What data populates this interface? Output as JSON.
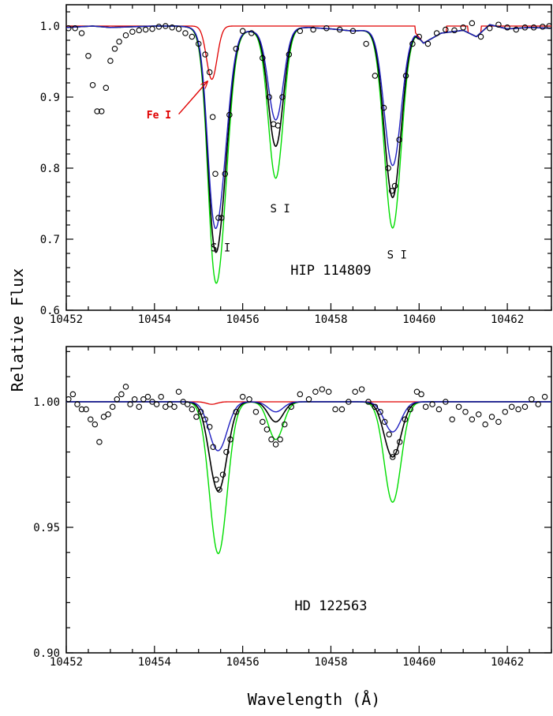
{
  "chart_data": {
    "type": "line",
    "xlabel": "Wavelength (Å)",
    "ylabel": "Relative Flux",
    "colors": {
      "observed": "#000000",
      "fe_only": "#e00000",
      "s_low": "#2020c0",
      "s_best": "#000000",
      "s_high": "#00dd00"
    },
    "panels": [
      {
        "label": "HIP 114809",
        "xlim": [
          10452,
          10463
        ],
        "ylim": [
          0.6,
          1.03
        ],
        "xticks": [
          10452,
          10454,
          10456,
          10458,
          10460,
          10462
        ],
        "xtick_labels": [
          "10452",
          "10454",
          "10456",
          "10458",
          "10460",
          "10462"
        ],
        "yticks": [
          0.6,
          0.7,
          0.8,
          0.9,
          1.0
        ],
        "ytick_labels": [
          "0.6",
          "0.7",
          "0.8",
          "0.9",
          "1.0"
        ],
        "annotations": [
          {
            "text": "S I",
            "x": 10455.5,
            "y": 0.683
          },
          {
            "text": "S I",
            "x": 10456.85,
            "y": 0.738
          },
          {
            "text": "S I",
            "x": 10459.5,
            "y": 0.673
          },
          {
            "text": "Fe I",
            "x": 10454.1,
            "y": 0.87,
            "color": "#e00000"
          }
        ],
        "arrow": {
          "from": [
            10454.55,
            0.876
          ],
          "to": [
            10455.2,
            0.922
          ],
          "color": "#e00000"
        },
        "base": {
          "x": [
            10452.0,
            10452.6,
            10453.0,
            10453.5,
            10454.0,
            10454.5,
            10455.0,
            10455.9,
            10456.2,
            10457.0,
            10457.5,
            10458.0,
            10458.5,
            10459.0,
            10459.9,
            10460.1,
            10460.5,
            10461.0,
            10461.3,
            10461.6,
            10462.0,
            10462.5,
            10463.0
          ],
          "y": [
            0.998,
            1.0,
            0.998,
            0.999,
            1.0,
            1.0,
            0.998,
            0.994,
            0.993,
            0.997,
            0.998,
            0.996,
            0.993,
            0.995,
            0.992,
            0.976,
            0.99,
            0.994,
            0.985,
            1.002,
            0.996,
            0.998,
            0.997
          ]
        },
        "lines": [
          {
            "center": 10455.45,
            "width": 0.2
          },
          {
            "center": 10456.75,
            "width": 0.17
          },
          {
            "center": 10459.4,
            "width": 0.19
          }
        ],
        "fe_line": {
          "center": 10455.3,
          "width": 0.12,
          "depth": 0.075
        },
        "series": [
          {
            "key": "s_high",
            "depths": [
              0.315,
              0.21,
              0.278
            ]
          },
          {
            "key": "s_best",
            "depths": [
              0.27,
              0.165,
              0.235
            ]
          },
          {
            "key": "s_low",
            "depths": [
              0.235,
              0.128,
              0.19
            ]
          }
        ],
        "observed": {
          "x": [
            10452.05,
            10452.2,
            10452.35,
            10452.5,
            10452.6,
            10452.7,
            10452.8,
            10452.9,
            10453.0,
            10453.1,
            10453.2,
            10453.35,
            10453.5,
            10453.65,
            10453.8,
            10453.95,
            10454.1,
            10454.25,
            10454.4,
            10454.55,
            10454.7,
            10454.85,
            10455.0,
            10455.15,
            10455.25,
            10455.32,
            10455.38,
            10455.45,
            10455.52,
            10455.6,
            10455.7,
            10455.85,
            10456.0,
            10456.2,
            10456.45,
            10456.6,
            10456.7,
            10456.8,
            10456.9,
            10457.05,
            10457.3,
            10457.6,
            10457.9,
            10458.2,
            10458.5,
            10458.8,
            10459.0,
            10459.2,
            10459.3,
            10459.38,
            10459.45,
            10459.55,
            10459.7,
            10459.85,
            10460.0,
            10460.2,
            10460.4,
            10460.6,
            10460.8,
            10461.0,
            10461.2,
            10461.4,
            10461.6,
            10461.8,
            10462.0,
            10462.2,
            10462.4,
            10462.6,
            10462.8,
            10462.95
          ],
          "y": [
            0.997,
            0.997,
            0.99,
            0.958,
            0.917,
            0.88,
            0.88,
            0.913,
            0.951,
            0.968,
            0.978,
            0.987,
            0.992,
            0.994,
            0.995,
            0.996,
            0.999,
            1.0,
            0.998,
            0.996,
            0.99,
            0.985,
            0.975,
            0.96,
            0.935,
            0.872,
            0.792,
            0.73,
            0.73,
            0.792,
            0.875,
            0.968,
            0.993,
            0.99,
            0.955,
            0.9,
            0.862,
            0.86,
            0.9,
            0.96,
            0.993,
            0.995,
            0.997,
            0.995,
            0.993,
            0.975,
            0.93,
            0.885,
            0.8,
            0.768,
            0.775,
            0.84,
            0.93,
            0.975,
            0.985,
            0.975,
            0.99,
            0.995,
            0.994,
            0.998,
            1.004,
            0.985,
            0.997,
            1.002,
            0.998,
            0.995,
            0.998,
            0.998,
            0.999,
            1.0
          ]
        }
      },
      {
        "label": "HD 122563",
        "xlim": [
          10452,
          10463
        ],
        "ylim": [
          0.9,
          1.022
        ],
        "xticks": [
          10452,
          10454,
          10456,
          10458,
          10460,
          10462
        ],
        "xtick_labels": [
          "10452",
          "10454",
          "10456",
          "10458",
          "10460",
          "10462"
        ],
        "yticks": [
          0.9,
          0.95,
          1.0
        ],
        "ytick_labels": [
          "0.90",
          "0.95",
          "1.00"
        ],
        "annotations": [],
        "arrow": null,
        "base": {
          "x": [
            10452.0,
            10463.0
          ],
          "y": [
            1.0,
            1.0
          ]
        },
        "lines": [
          {
            "center": 10455.45,
            "width": 0.2
          },
          {
            "center": 10456.75,
            "width": 0.17
          },
          {
            "center": 10459.4,
            "width": 0.19
          }
        ],
        "fe_line": {
          "center": 10455.3,
          "width": 0.12,
          "depth": 0.001
        },
        "series": [
          {
            "key": "s_high",
            "depths": [
              0.06,
              0.015,
              0.04
            ]
          },
          {
            "key": "s_best",
            "depths": [
              0.035,
              0.008,
              0.022
            ]
          },
          {
            "key": "s_low",
            "depths": [
              0.019,
              0.004,
              0.012
            ]
          }
        ],
        "observed": {
          "x": [
            10452.05,
            10452.15,
            10452.25,
            10452.35,
            10452.45,
            10452.55,
            10452.65,
            10452.75,
            10452.85,
            10452.95,
            10453.05,
            10453.15,
            10453.25,
            10453.35,
            10453.45,
            10453.55,
            10453.65,
            10453.75,
            10453.85,
            10453.95,
            10454.05,
            10454.15,
            10454.25,
            10454.35,
            10454.45,
            10454.55,
            10454.65,
            10454.75,
            10454.85,
            10454.95,
            10455.05,
            10455.15,
            10455.25,
            10455.33,
            10455.4,
            10455.47,
            10455.55,
            10455.63,
            10455.72,
            10455.85,
            10456.0,
            10456.15,
            10456.3,
            10456.45,
            10456.55,
            10456.65,
            10456.75,
            10456.85,
            10456.95,
            10457.1,
            10457.3,
            10457.5,
            10457.65,
            10457.8,
            10457.95,
            10458.1,
            10458.25,
            10458.4,
            10458.55,
            10458.7,
            10458.85,
            10459.0,
            10459.12,
            10459.22,
            10459.32,
            10459.4,
            10459.48,
            10459.56,
            10459.68,
            10459.8,
            10459.95,
            10460.05,
            10460.15,
            10460.3,
            10460.45,
            10460.6,
            10460.75,
            10460.9,
            10461.05,
            10461.2,
            10461.35,
            10461.5,
            10461.65,
            10461.8,
            10461.95,
            10462.1,
            10462.25,
            10462.4,
            10462.55,
            10462.7,
            10462.85
          ],
          "y": [
            1.001,
            1.003,
            0.999,
            0.997,
            0.997,
            0.993,
            0.991,
            0.984,
            0.994,
            0.995,
            0.998,
            1.001,
            1.003,
            1.006,
            0.999,
            1.001,
            0.998,
            1.001,
            1.002,
            1.0,
            0.999,
            1.002,
            0.998,
            0.999,
            0.998,
            1.004,
            1.0,
            0.999,
            0.997,
            0.994,
            0.996,
            0.993,
            0.99,
            0.982,
            0.969,
            0.965,
            0.971,
            0.98,
            0.985,
            0.996,
            1.002,
            1.001,
            0.996,
            0.992,
            0.989,
            0.985,
            0.983,
            0.985,
            0.991,
            0.998,
            1.003,
            1.001,
            1.004,
            1.005,
            1.004,
            0.997,
            0.997,
            1.0,
            1.004,
            1.005,
            1.0,
            0.998,
            0.996,
            0.992,
            0.987,
            0.978,
            0.98,
            0.984,
            0.993,
            0.997,
            1.004,
            1.003,
            0.998,
            0.999,
            0.997,
            1.0,
            0.993,
            0.998,
            0.996,
            0.993,
            0.995,
            0.991,
            0.994,
            0.992,
            0.996,
            0.998,
            0.997,
            0.998,
            1.001,
            0.999,
            1.002
          ]
        }
      }
    ]
  }
}
